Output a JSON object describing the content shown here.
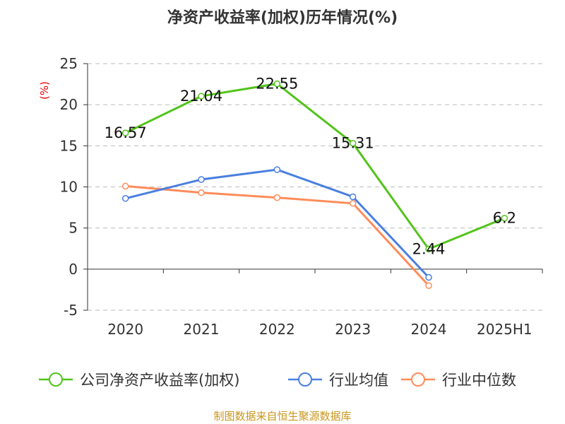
{
  "chart_data": {
    "type": "line",
    "title": "净资产收益率(加权)历年情况(%)",
    "ylabel": "(%)",
    "categories": [
      "2020",
      "2021",
      "2022",
      "2023",
      "2024",
      "2025H1"
    ],
    "ylim": [
      -5,
      25
    ],
    "yticks": [
      "-5",
      "0",
      "5",
      "10",
      "15",
      "20",
      "25"
    ],
    "grid": true,
    "legend_position": "bottom",
    "series": [
      {
        "name": "公司净资产收益率(加权)",
        "color": "#52c41a",
        "values": [
          16.57,
          21.04,
          22.55,
          15.31,
          2.44,
          6.2
        ],
        "labels": [
          "16.57",
          "21.04",
          "22.55",
          "15.31",
          "2.44",
          "6.2"
        ]
      },
      {
        "name": "行业均值",
        "color": "#4a7fe0",
        "values": [
          8.6,
          10.9,
          12.1,
          8.8,
          -1.0,
          null
        ]
      },
      {
        "name": "行业中位数",
        "color": "#ff8c5a",
        "values": [
          10.1,
          9.3,
          8.7,
          8.0,
          -2.0,
          null
        ]
      }
    ],
    "source": "制图数据来自恒生聚源数据库"
  }
}
